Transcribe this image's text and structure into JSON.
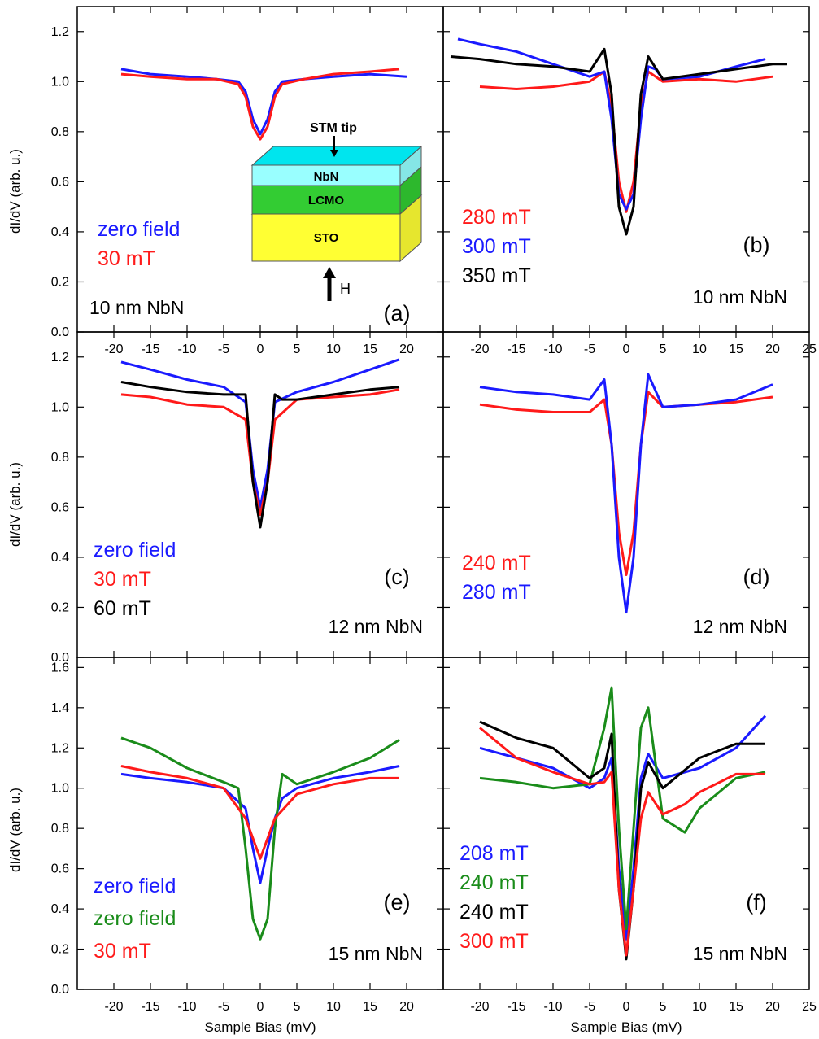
{
  "figure": {
    "y_axis_label": "dI/dV (arb. u.)",
    "x_axis_label": "Sample Bias (mV)"
  },
  "inset": {
    "tip_label": "STM tip",
    "layers": [
      {
        "label": "NbN",
        "color": "#99ffff"
      },
      {
        "label": "LCMO",
        "color": "#33cc33"
      },
      {
        "label": "STO",
        "color": "#ffff33"
      }
    ],
    "field_label": "H"
  },
  "chart_data": [
    {
      "type": "line",
      "panel": "(a)",
      "sample": "10 nm NbN",
      "xlim": [
        -25,
        25
      ],
      "ylim": [
        0.0,
        1.3
      ],
      "xticks": [
        "-20",
        "-15",
        "-10",
        "-5",
        "0",
        "5",
        "10",
        "15",
        "20"
      ],
      "yticks": [
        "0.0",
        "0.2",
        "0.4",
        "0.6",
        "0.8",
        "1.0",
        "1.2"
      ],
      "series": [
        {
          "name": "zero field",
          "color": "#1a1aff",
          "x": [
            -19,
            -15,
            -10,
            -6,
            -3,
            -2,
            -1,
            0,
            1,
            2,
            3,
            6,
            10,
            15,
            20
          ],
          "y": [
            1.05,
            1.03,
            1.02,
            1.01,
            1.0,
            0.96,
            0.85,
            0.79,
            0.85,
            0.96,
            1.0,
            1.01,
            1.02,
            1.03,
            1.02
          ]
        },
        {
          "name": "30 mT",
          "color": "#ff1a1a",
          "x": [
            -19,
            -15,
            -10,
            -6,
            -3,
            -2,
            -1,
            0,
            1,
            2,
            3,
            6,
            10,
            15,
            19
          ],
          "y": [
            1.03,
            1.02,
            1.01,
            1.01,
            0.99,
            0.94,
            0.82,
            0.77,
            0.82,
            0.94,
            0.99,
            1.01,
            1.03,
            1.04,
            1.05
          ]
        }
      ]
    },
    {
      "type": "line",
      "panel": "(b)",
      "sample": "10 nm NbN",
      "xlim": [
        -25,
        25
      ],
      "ylim": [
        0.0,
        1.3
      ],
      "xticks": [
        "-20",
        "-15",
        "-10",
        "-5",
        "0",
        "5",
        "10",
        "15",
        "20",
        "25"
      ],
      "yticks": [],
      "series": [
        {
          "name": "280 mT",
          "color": "#ff1a1a",
          "x": [
            -20,
            -15,
            -10,
            -5,
            -3,
            -2,
            -1,
            0,
            1,
            2,
            3,
            5,
            10,
            15,
            20
          ],
          "y": [
            0.98,
            0.97,
            0.98,
            1.0,
            1.04,
            0.9,
            0.6,
            0.48,
            0.6,
            0.9,
            1.04,
            1.0,
            1.01,
            1.0,
            1.02
          ]
        },
        {
          "name": "300 mT",
          "color": "#1a1aff",
          "x": [
            -23,
            -20,
            -15,
            -10,
            -5,
            -3,
            -2,
            -1,
            0,
            1,
            2,
            3,
            4,
            5,
            10,
            15,
            19
          ],
          "y": [
            1.17,
            1.15,
            1.12,
            1.07,
            1.02,
            1.04,
            0.85,
            0.55,
            0.49,
            0.55,
            0.85,
            1.06,
            1.05,
            1.01,
            1.02,
            1.06,
            1.09
          ]
        },
        {
          "name": "350 mT",
          "color": "#000000",
          "x": [
            -24,
            -20,
            -15,
            -10,
            -5,
            -3,
            -2,
            -1,
            0,
            1,
            2,
            3,
            5,
            10,
            15,
            20,
            22
          ],
          "y": [
            1.1,
            1.09,
            1.07,
            1.06,
            1.04,
            1.13,
            0.95,
            0.5,
            0.39,
            0.5,
            0.95,
            1.1,
            1.01,
            1.03,
            1.05,
            1.07,
            1.07
          ]
        }
      ]
    },
    {
      "type": "line",
      "panel": "(c)",
      "sample": "12 nm NbN",
      "xlim": [
        -25,
        25
      ],
      "ylim": [
        0.0,
        1.3
      ],
      "xticks": [],
      "yticks": [
        "0.0",
        "0.2",
        "0.4",
        "0.6",
        "0.8",
        "1.0",
        "1.2"
      ],
      "series": [
        {
          "name": "zero field",
          "color": "#1a1aff",
          "x": [
            -19,
            -15,
            -10,
            -5,
            -2,
            -1,
            0,
            1,
            2,
            5,
            10,
            15,
            19
          ],
          "y": [
            1.18,
            1.15,
            1.11,
            1.08,
            1.02,
            0.75,
            0.6,
            0.75,
            1.02,
            1.06,
            1.1,
            1.15,
            1.19
          ]
        },
        {
          "name": "30 mT",
          "color": "#ff1a1a",
          "x": [
            -19,
            -15,
            -10,
            -5,
            -2,
            -1,
            0,
            1,
            2,
            5,
            10,
            15,
            19
          ],
          "y": [
            1.05,
            1.04,
            1.01,
            1.0,
            0.95,
            0.7,
            0.57,
            0.7,
            0.95,
            1.03,
            1.04,
            1.05,
            1.07
          ]
        },
        {
          "name": "60 mT",
          "color": "#000000",
          "x": [
            -19,
            -15,
            -10,
            -5,
            -2,
            -1,
            0,
            1,
            2,
            3,
            5,
            10,
            15,
            19
          ],
          "y": [
            1.1,
            1.08,
            1.06,
            1.05,
            1.05,
            0.7,
            0.52,
            0.7,
            1.05,
            1.03,
            1.03,
            1.05,
            1.07,
            1.08
          ]
        }
      ]
    },
    {
      "type": "line",
      "panel": "(d)",
      "sample": "12 nm NbN",
      "xlim": [
        -25,
        25
      ],
      "ylim": [
        0.0,
        1.3
      ],
      "xticks": [],
      "yticks": [],
      "series": [
        {
          "name": "240 mT",
          "color": "#ff1a1a",
          "x": [
            -20,
            -15,
            -10,
            -5,
            -3,
            -2,
            -1,
            0,
            1,
            2,
            3,
            5,
            10,
            15,
            20
          ],
          "y": [
            1.01,
            0.99,
            0.98,
            0.98,
            1.03,
            0.85,
            0.5,
            0.33,
            0.5,
            0.85,
            1.06,
            1.0,
            1.01,
            1.02,
            1.04
          ]
        },
        {
          "name": "280 mT",
          "color": "#1a1aff",
          "x": [
            -20,
            -15,
            -10,
            -5,
            -3,
            -2,
            -1,
            0,
            1,
            2,
            3,
            5,
            10,
            15,
            20
          ],
          "y": [
            1.08,
            1.06,
            1.05,
            1.03,
            1.11,
            0.85,
            0.4,
            0.18,
            0.4,
            0.85,
            1.13,
            1.0,
            1.01,
            1.03,
            1.09
          ]
        }
      ]
    },
    {
      "type": "line",
      "panel": "(e)",
      "sample": "15 nm NbN",
      "xlim": [
        -25,
        25
      ],
      "ylim": [
        0.0,
        1.65
      ],
      "xticks": [
        "-20",
        "-15",
        "-10",
        "-5",
        "0",
        "5",
        "10",
        "15",
        "20"
      ],
      "yticks": [
        "0.0",
        "0.2",
        "0.4",
        "0.6",
        "0.8",
        "1.0",
        "1.2",
        "1.4",
        "1.6"
      ],
      "series": [
        {
          "name": "zero field",
          "color": "#1a1aff",
          "x": [
            -19,
            -15,
            -10,
            -5,
            -2,
            -1,
            0,
            1,
            2,
            3,
            5,
            10,
            15,
            19
          ],
          "y": [
            1.07,
            1.05,
            1.03,
            1.0,
            0.9,
            0.7,
            0.53,
            0.7,
            0.85,
            0.95,
            1.0,
            1.05,
            1.08,
            1.11
          ]
        },
        {
          "name": "zero field",
          "color": "#1a8c1a",
          "x": [
            -19,
            -15,
            -10,
            -5,
            -3,
            -2,
            -1,
            0,
            1,
            2,
            3,
            5,
            10,
            15,
            19
          ],
          "y": [
            1.25,
            1.2,
            1.1,
            1.03,
            1.0,
            0.7,
            0.35,
            0.25,
            0.35,
            0.8,
            1.07,
            1.02,
            1.08,
            1.15,
            1.24
          ]
        },
        {
          "name": "30 mT",
          "color": "#ff1a1a",
          "x": [
            -19,
            -15,
            -10,
            -5,
            -2,
            -1,
            0,
            1,
            2,
            5,
            10,
            15,
            19
          ],
          "y": [
            1.11,
            1.08,
            1.05,
            1.0,
            0.85,
            0.75,
            0.65,
            0.75,
            0.85,
            0.97,
            1.02,
            1.05,
            1.05
          ]
        }
      ]
    },
    {
      "type": "line",
      "panel": "(f)",
      "sample": "15 nm NbN",
      "xlim": [
        -25,
        25
      ],
      "ylim": [
        0.0,
        1.65
      ],
      "xticks": [
        "-20",
        "-15",
        "-10",
        "-5",
        "0",
        "5",
        "10",
        "15",
        "20",
        "25"
      ],
      "yticks": [],
      "series": [
        {
          "name": "208 mT",
          "color": "#1a1aff",
          "x": [
            -20,
            -15,
            -10,
            -5,
            -3,
            -2,
            -1,
            0,
            1,
            2,
            3,
            5,
            10,
            15,
            19
          ],
          "y": [
            1.2,
            1.15,
            1.1,
            1.0,
            1.05,
            1.15,
            0.6,
            0.25,
            0.6,
            1.05,
            1.17,
            1.05,
            1.1,
            1.2,
            1.36
          ]
        },
        {
          "name": "240 mT",
          "color": "#1a8c1a",
          "x": [
            -20,
            -15,
            -10,
            -5,
            -3,
            -2,
            -1,
            0,
            1,
            2,
            3,
            5,
            8,
            10,
            15,
            19
          ],
          "y": [
            1.05,
            1.03,
            1.0,
            1.02,
            1.3,
            1.5,
            0.8,
            0.3,
            0.8,
            1.3,
            1.4,
            0.85,
            0.78,
            0.9,
            1.05,
            1.08
          ]
        },
        {
          "name": "240 mT",
          "color": "#000000",
          "x": [
            -20,
            -15,
            -10,
            -5,
            -3,
            -2,
            -1,
            0,
            1,
            2,
            3,
            5,
            10,
            15,
            19
          ],
          "y": [
            1.33,
            1.25,
            1.2,
            1.05,
            1.1,
            1.27,
            0.5,
            0.15,
            0.5,
            1.0,
            1.13,
            1.0,
            1.15,
            1.22,
            1.22
          ]
        },
        {
          "name": "300 mT",
          "color": "#ff1a1a",
          "x": [
            -20,
            -15,
            -10,
            -5,
            -3,
            -2,
            -1,
            0,
            1,
            2,
            3,
            5,
            8,
            10,
            15,
            19
          ],
          "y": [
            1.3,
            1.15,
            1.08,
            1.02,
            1.03,
            1.08,
            0.5,
            0.17,
            0.5,
            0.85,
            0.98,
            0.87,
            0.92,
            0.98,
            1.07,
            1.07
          ]
        }
      ]
    }
  ]
}
